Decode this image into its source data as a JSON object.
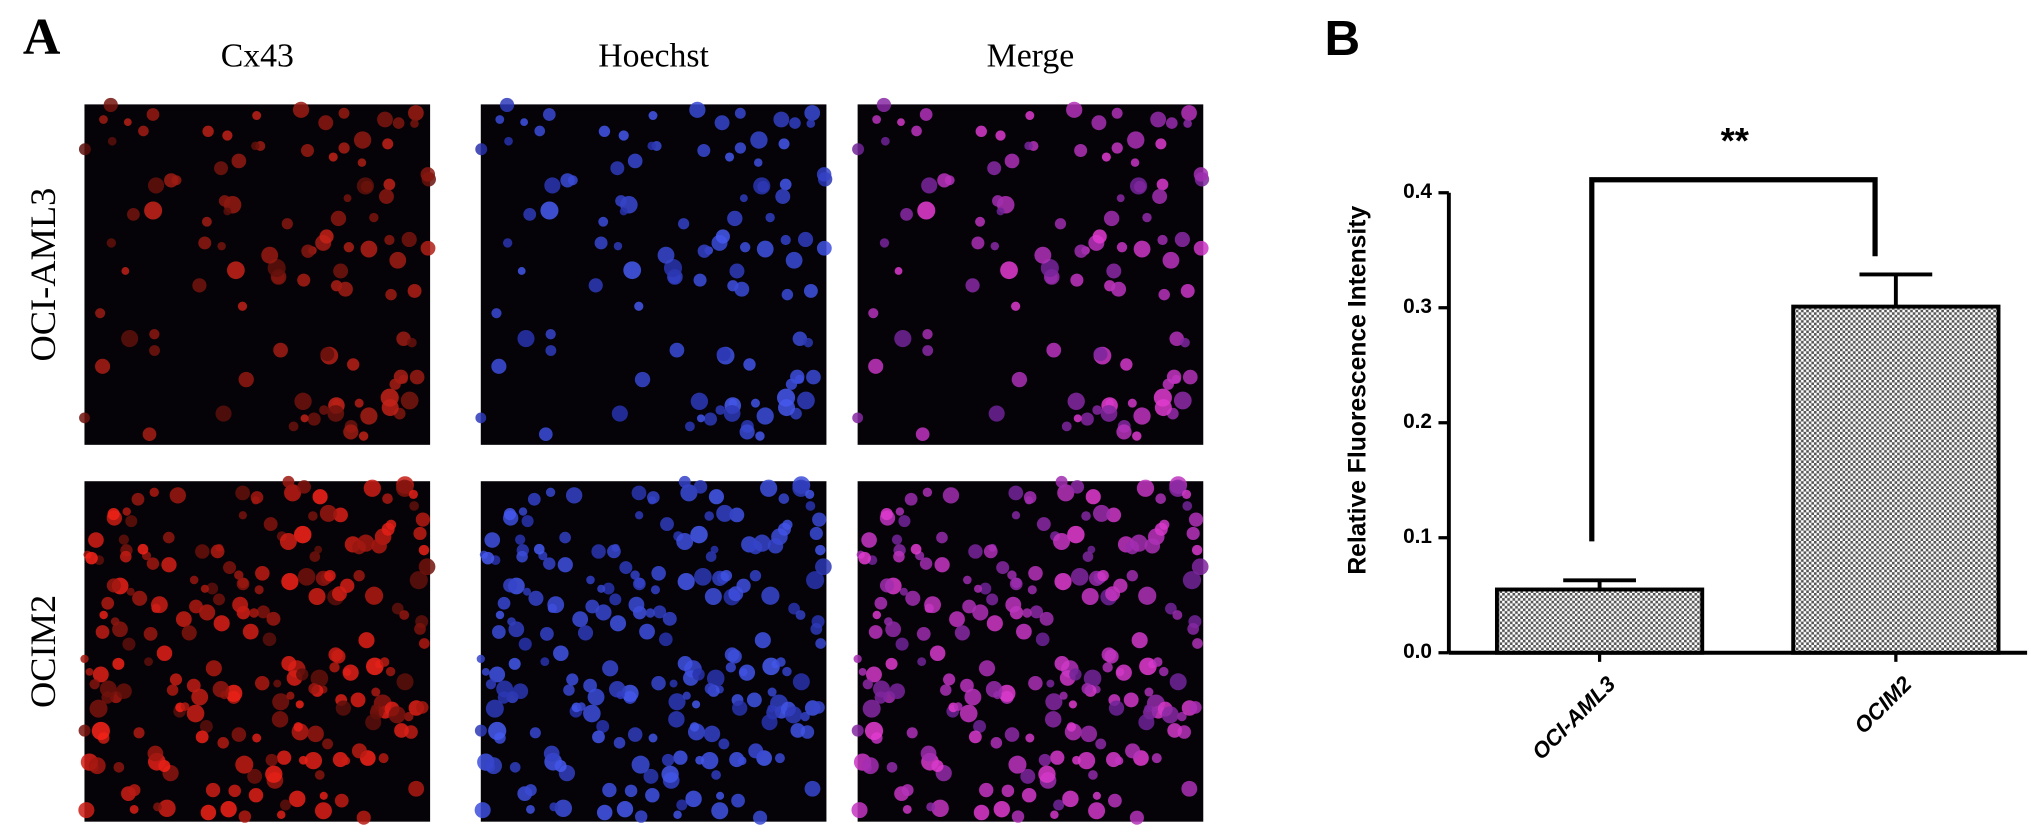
{
  "panel_a": {
    "label": "A",
    "columns": [
      "Cx43",
      "Hoechst",
      "Merge"
    ],
    "rows": [
      "OCI-AML3",
      "OCIM2"
    ]
  },
  "chart_data": {
    "type": "bar",
    "panel_label": "B",
    "ylabel": "Relative Fluorescence Intensity",
    "categories": [
      "OCI-AML3",
      "OCIM2"
    ],
    "values": [
      0.055,
      0.301
    ],
    "errors": [
      0.008,
      0.028
    ],
    "ylim": [
      0,
      0.4
    ],
    "yticks": [
      {
        "value": 0,
        "label": "0.0"
      },
      0.1,
      0.2,
      0.3,
      0.4
    ],
    "annotation": "**"
  }
}
